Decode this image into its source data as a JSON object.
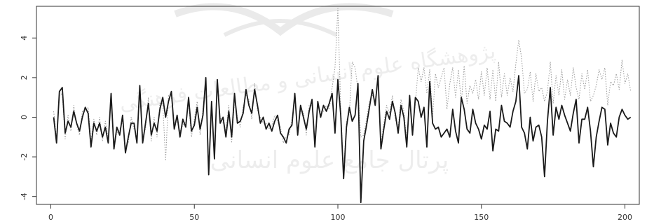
{
  "chart_data": {
    "type": "line",
    "x_range": [
      1,
      200
    ],
    "xlim": [
      -5,
      205
    ],
    "ylim": [
      -4.4,
      5.6
    ],
    "x_ticks": [
      0,
      50,
      100,
      150,
      200
    ],
    "x_tick_labels": [
      "0",
      "50",
      "100",
      "150",
      "200"
    ],
    "y_ticks": [
      -4,
      -2,
      0,
      2,
      4
    ],
    "y_tick_labels": [
      "-4",
      "-2",
      "0",
      "2",
      "4"
    ],
    "grid": false,
    "legend": "none",
    "series": [
      {
        "style": "solid",
        "color": "#1a1a1a",
        "values": [
          0.0,
          -1.3,
          1.3,
          1.5,
          -0.8,
          -0.2,
          -0.5,
          0.3,
          -0.3,
          -0.7,
          0.0,
          0.5,
          0.2,
          -1.5,
          -0.3,
          -0.7,
          -0.3,
          -1.0,
          -0.5,
          -1.3,
          1.2,
          -1.6,
          -0.5,
          -0.9,
          0.1,
          -1.8,
          -1.0,
          -0.3,
          -0.3,
          -1.3,
          1.6,
          -1.3,
          -0.3,
          0.7,
          -0.9,
          -0.3,
          -0.7,
          0.4,
          1.0,
          0.0,
          0.8,
          1.3,
          -0.6,
          0.1,
          -1.0,
          -0.1,
          -0.5,
          1.0,
          -0.7,
          -0.4,
          0.5,
          -0.6,
          0.1,
          2.0,
          -2.9,
          0.8,
          -2.1,
          1.9,
          -0.3,
          0.0,
          -1.0,
          0.3,
          -1.0,
          1.2,
          -0.3,
          -0.2,
          0.2,
          1.4,
          0.6,
          0.2,
          1.4,
          0.6,
          -0.3,
          0.0,
          -0.6,
          -0.3,
          -0.7,
          -0.2,
          0.1,
          -0.8,
          -1.0,
          -1.3,
          -0.6,
          -0.4,
          1.2,
          -0.9,
          0.6,
          0.0,
          -0.6,
          0.3,
          0.9,
          -1.5,
          0.8,
          0.0,
          0.6,
          0.3,
          0.7,
          1.2,
          -0.8,
          1.9,
          0.1,
          -3.1,
          -0.5,
          0.5,
          -0.2,
          0.1,
          1.7,
          -4.3,
          -1.2,
          -0.4,
          0.5,
          1.4,
          0.6,
          2.1,
          -1.6,
          -0.6,
          0.3,
          -0.1,
          0.8,
          0.2,
          -0.8,
          0.6,
          0.0,
          -1.5,
          1.1,
          -0.9,
          1.0,
          0.8,
          0.0,
          0.5,
          -1.5,
          1.8,
          -0.3,
          -0.6,
          -0.5,
          -1.0,
          -0.8,
          -0.6,
          -1.0,
          0.4,
          -0.7,
          -1.3,
          1.0,
          0.4,
          -0.6,
          -0.8,
          0.4,
          -0.3,
          -0.6,
          -1.1,
          -0.4,
          -0.6,
          0.3,
          -1.7,
          -0.6,
          -0.7,
          0.6,
          -0.2,
          -0.3,
          -0.5,
          0.3,
          0.8,
          2.1,
          -0.5,
          -0.8,
          -1.6,
          0.0,
          -1.2,
          -0.5,
          -0.4,
          -1.0,
          -3.0,
          -0.2,
          1.5,
          -0.9,
          0.5,
          -0.1,
          0.6,
          0.1,
          -0.3,
          -0.7,
          0.2,
          0.9,
          -1.3,
          -0.1,
          -0.1,
          0.5,
          -0.7,
          -2.5,
          -1.0,
          -0.2,
          0.5,
          0.4,
          -1.4,
          -0.3,
          -0.8,
          -1.0,
          0.0,
          0.4,
          0.1,
          -0.1,
          0.0
        ]
      },
      {
        "style": "dotted",
        "color": "#9a9a9a",
        "values": [
          0.3,
          -1.1,
          1.1,
          1.2,
          -1.1,
          0.1,
          -0.7,
          0.6,
          -0.4,
          -0.9,
          0.3,
          0.3,
          0.5,
          -1.2,
          -0.1,
          -0.9,
          0.0,
          -1.2,
          -0.2,
          -1.1,
          0.9,
          -1.3,
          -0.8,
          -0.6,
          -0.2,
          -1.5,
          -1.3,
          0.0,
          -0.6,
          -1.0,
          1.3,
          -1.0,
          -0.6,
          1.0,
          -1.2,
          0.0,
          -1.0,
          0.7,
          0.7,
          -2.2,
          1.1,
          1.0,
          -0.3,
          -0.2,
          -0.7,
          -0.4,
          -0.2,
          0.7,
          -1.0,
          -0.1,
          0.8,
          -0.9,
          0.4,
          1.7,
          -2.6,
          0.5,
          -1.8,
          1.6,
          0.0,
          -0.3,
          -0.7,
          0.6,
          -1.3,
          0.9,
          0.0,
          -0.5,
          0.5,
          1.1,
          0.9,
          -0.1,
          1.7,
          0.3,
          0.0,
          -0.3,
          -0.3,
          -0.6,
          -0.4,
          0.1,
          -0.2,
          -0.5,
          -1.3,
          -1.0,
          -0.9,
          -0.1,
          0.9,
          -0.6,
          0.3,
          0.3,
          -0.9,
          0.6,
          0.6,
          -1.2,
          0.5,
          0.3,
          0.3,
          0.6,
          0.4,
          1.5,
          2.5,
          5.5,
          0.4,
          -2.8,
          -0.2,
          0.2,
          2.8,
          2.5,
          1.4,
          -1.0,
          -0.9,
          -0.1,
          0.8,
          1.1,
          0.9,
          1.8,
          -1.3,
          -0.3,
          0.6,
          0.2,
          1.1,
          -0.1,
          -0.5,
          0.9,
          0.3,
          -1.2,
          0.8,
          -0.6,
          0.7,
          2.5,
          1.8,
          2.5,
          1.2,
          2.4,
          0.0,
          2.2,
          1.5,
          2.0,
          2.5,
          0.4,
          1.7,
          2.5,
          1.0,
          2.4,
          0.7,
          2.6,
          0.7,
          1.6,
          1.2,
          1.9,
          0.9,
          2.3,
          1.1,
          2.5,
          0.9,
          2.4,
          0.8,
          2.8,
          1.0,
          2.2,
          1.1,
          2.0,
          1.3,
          2.7,
          3.9,
          3.0,
          1.2,
          1.4,
          2.3,
          0.8,
          2.2,
          1.3,
          1.5,
          0.8,
          1.3,
          2.8,
          0.7,
          2.1,
          1.1,
          2.4,
          0.9,
          1.9,
          1.1,
          2.5,
          1.5,
          0.9,
          2.2,
          1.4,
          2.4,
          0.8,
          1.1,
          1.6,
          2.4,
          1.9,
          2.5,
          0.6,
          1.8,
          1.6,
          2.2,
          1.4,
          2.9,
          1.7,
          2.2,
          1.3
        ]
      }
    ]
  },
  "colors": {
    "watermark": "#d9d9d9",
    "axis": "#333333"
  },
  "watermark": {
    "icon": "institution-logo-watermark",
    "lines": [
      "پرتال جامع علوم انسانی",
      "پژوهشگاه علوم انسانی و مطالعات فرهنگی"
    ]
  }
}
